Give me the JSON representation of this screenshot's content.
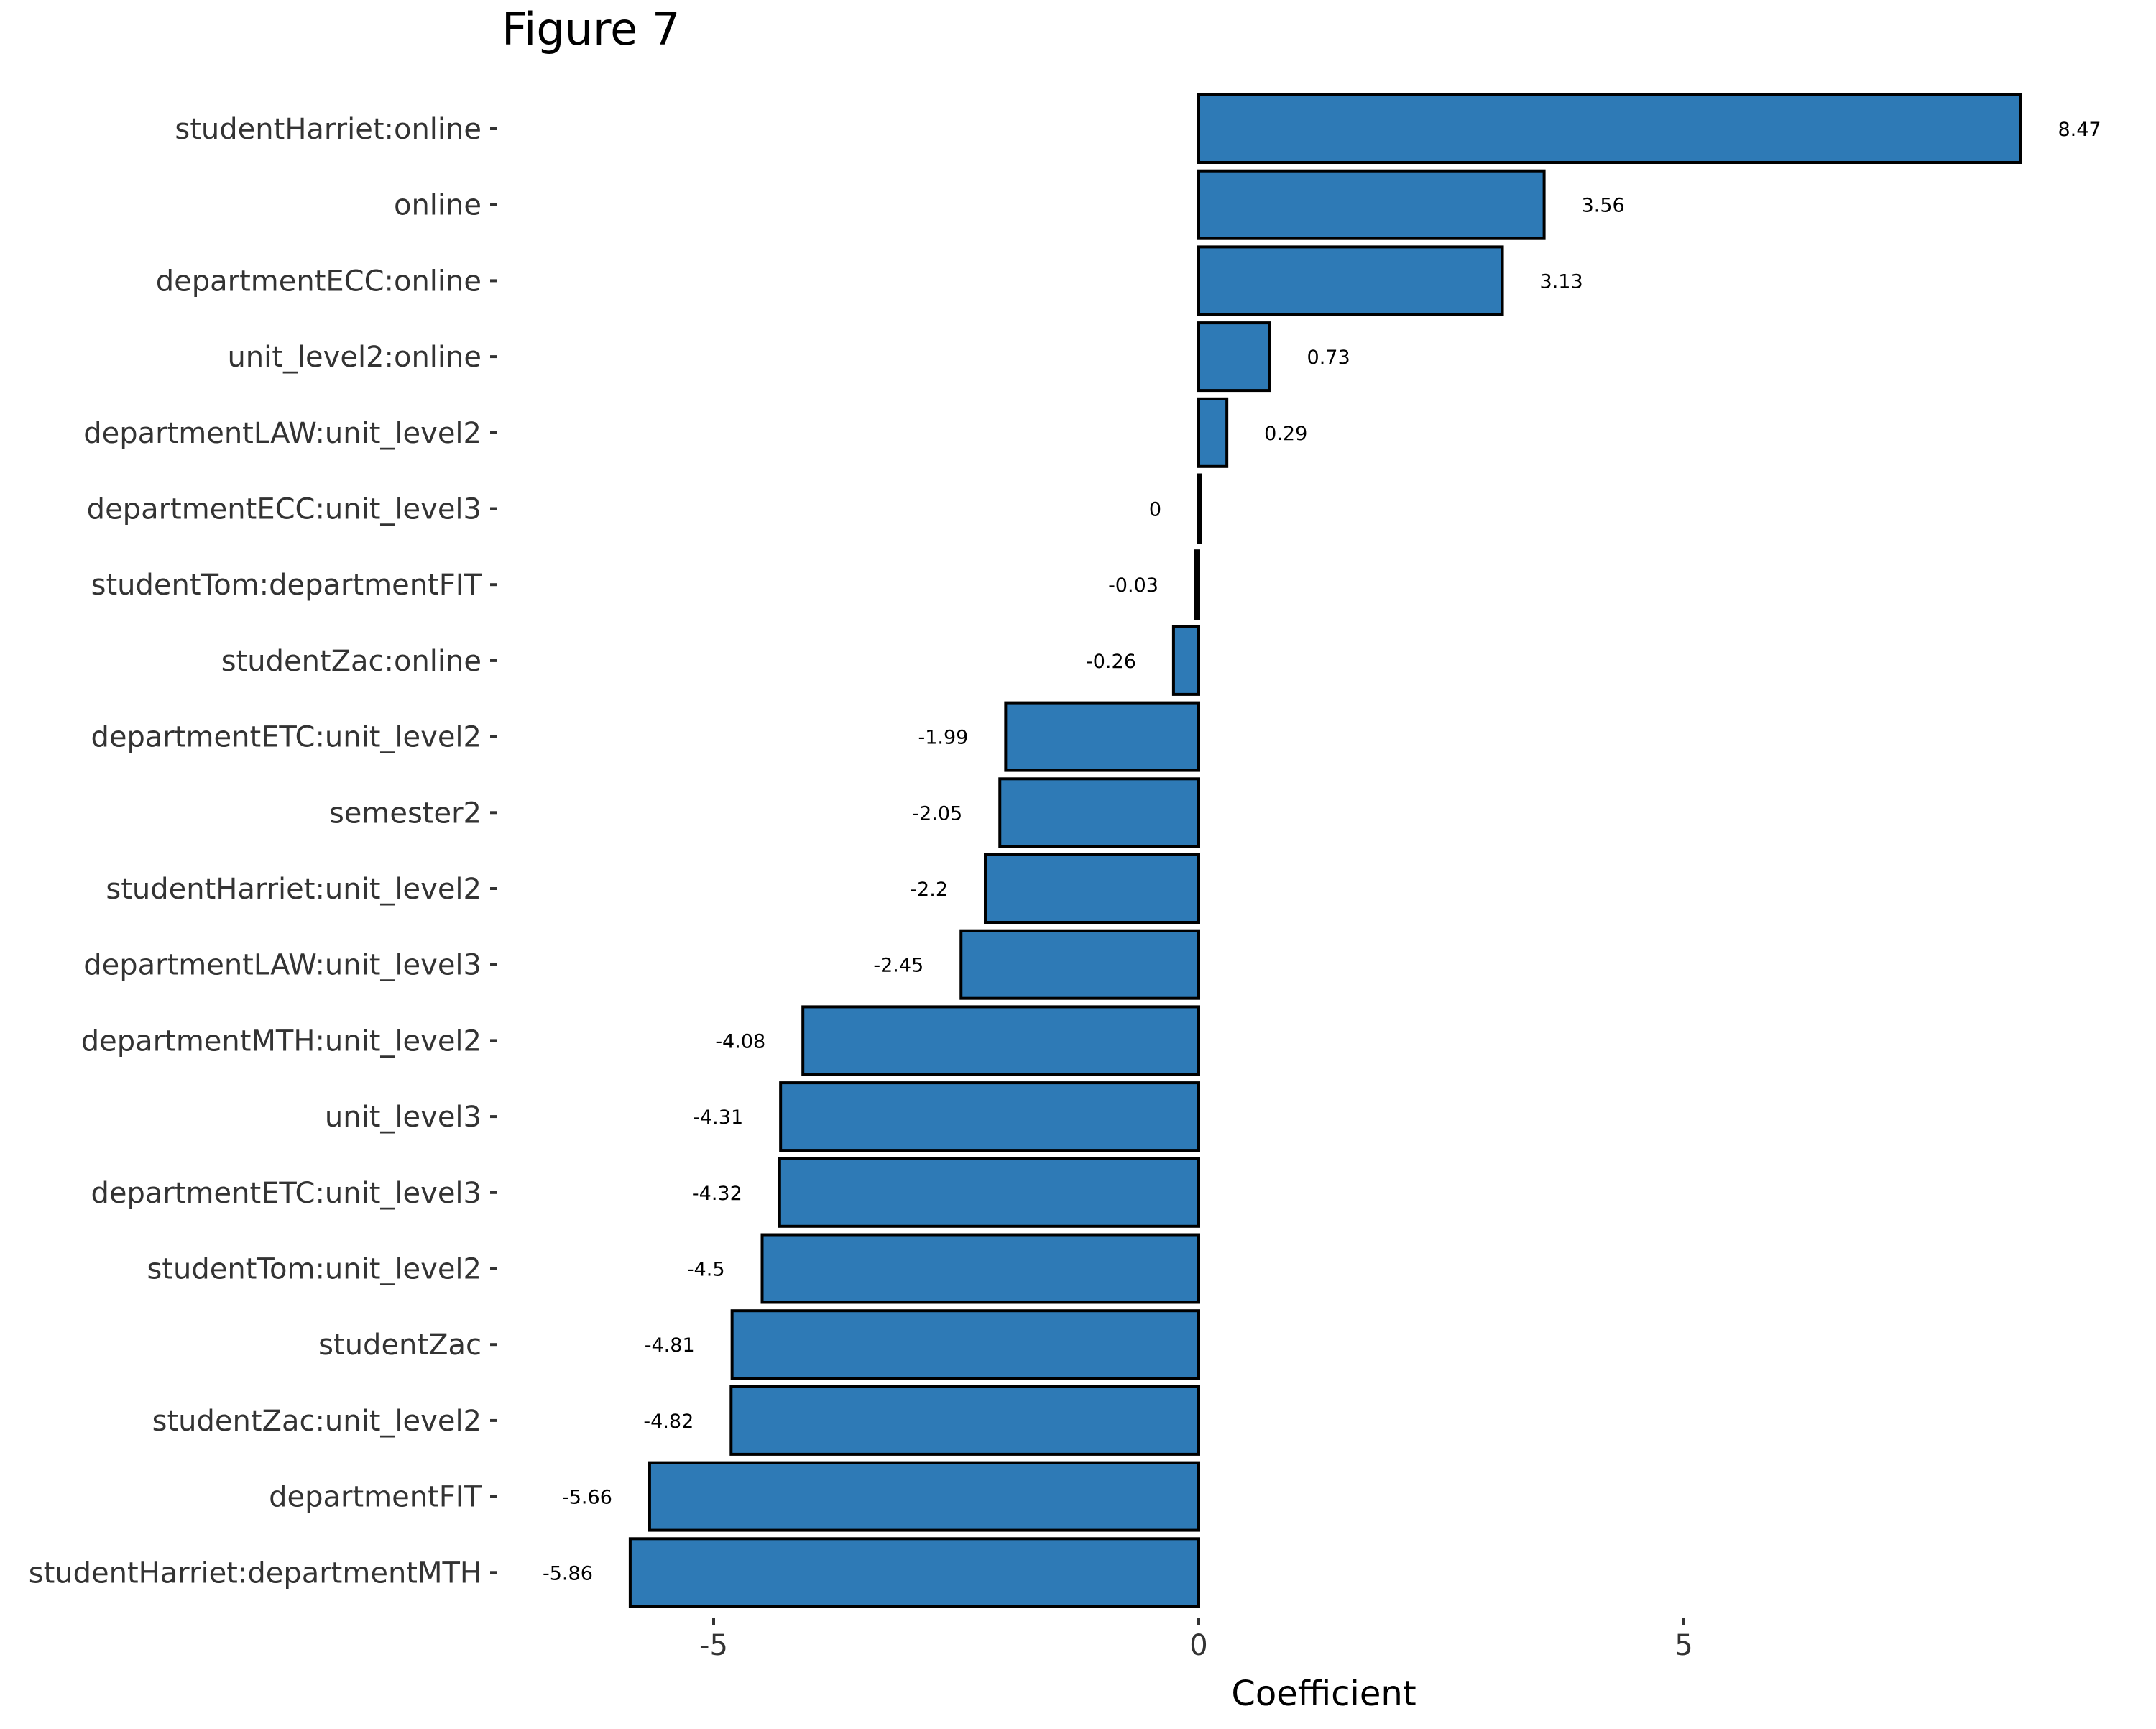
{
  "chart_data": {
    "type": "bar",
    "orientation": "horizontal",
    "title": "Figure 7",
    "xlabel": "Coefficient",
    "ylabel": "",
    "xlim": [
      -6.3,
      9.3
    ],
    "x_ticks": [
      {
        "value": -5,
        "label": "-5"
      },
      {
        "value": 0,
        "label": "0"
      },
      {
        "value": 5,
        "label": "5"
      }
    ],
    "grid": false,
    "legend": "none",
    "bar_color": "#2E7AB6",
    "bar_outline_color": "#000000",
    "categories": [
      "studentHarriet:online",
      "online",
      "departmentECC:online",
      "unit_level2:online",
      "departmentLAW:unit_level2",
      "departmentECC:unit_level3",
      "studentTom:departmentFIT",
      "studentZac:online",
      "departmentETC:unit_level2",
      "semester2",
      "studentHarriet:unit_level2",
      "departmentLAW:unit_level3",
      "departmentMTH:unit_level2",
      "unit_level3",
      "departmentETC:unit_level3",
      "studentTom:unit_level2",
      "studentZac",
      "studentZac:unit_level2",
      "departmentFIT",
      "studentHarriet:departmentMTH"
    ],
    "values": [
      8.47,
      3.56,
      3.13,
      0.73,
      0.29,
      0,
      -0.03,
      -0.26,
      -1.99,
      -2.05,
      -2.2,
      -2.45,
      -4.08,
      -4.31,
      -4.32,
      -4.5,
      -4.81,
      -4.82,
      -5.66,
      -5.86
    ],
    "value_labels": [
      "8.47",
      "3.56",
      "3.13",
      "0.73",
      "0.29",
      "0",
      "-0.03",
      "-0.26",
      "-1.99",
      "-2.05",
      "-2.2",
      "-2.45",
      "-4.08",
      "-4.31",
      "-4.32",
      "-4.5",
      "-4.81",
      "-4.82",
      "-5.66",
      "-5.86"
    ]
  }
}
